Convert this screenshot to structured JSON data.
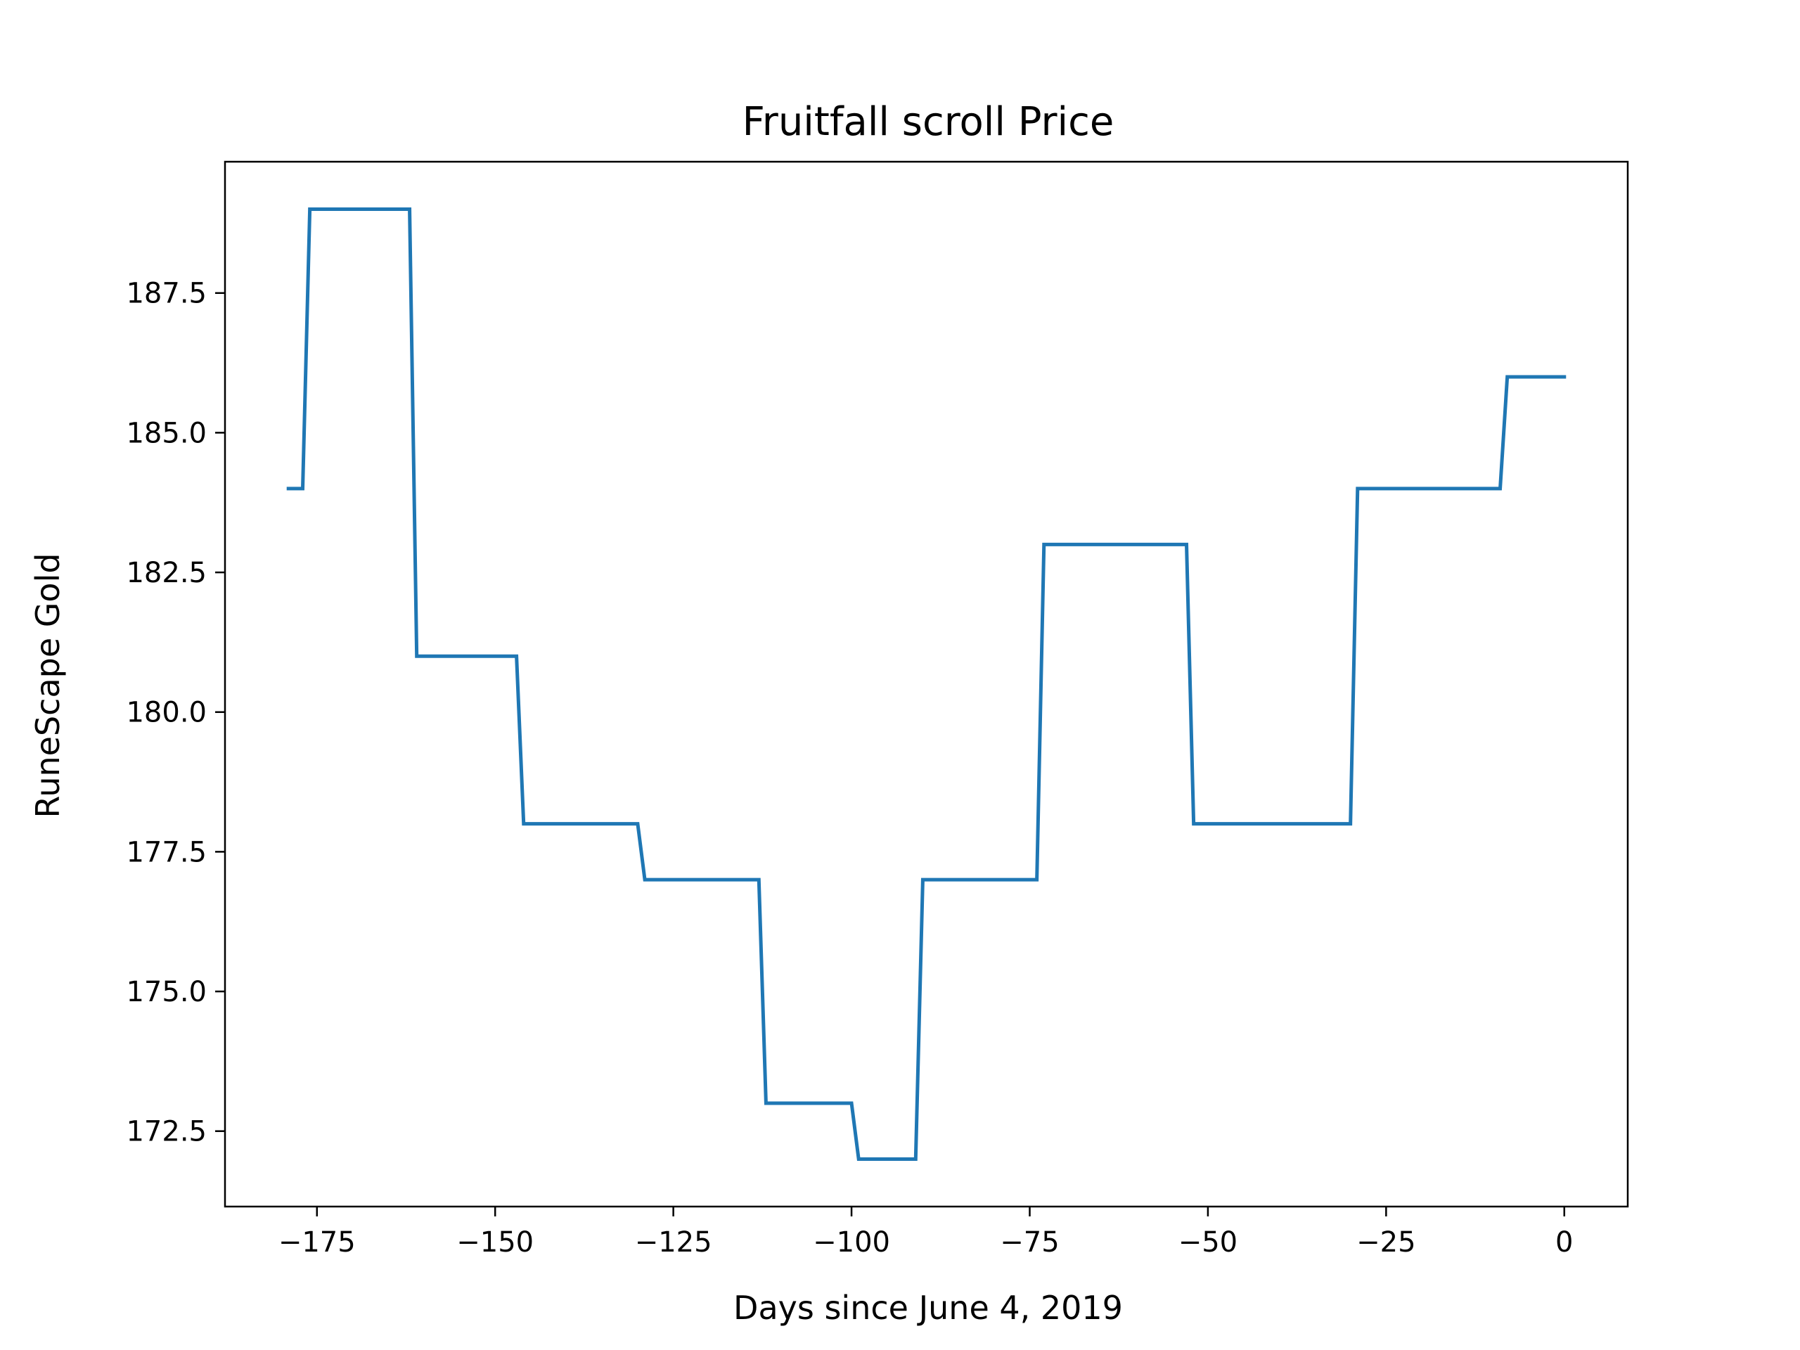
{
  "chart_data": {
    "type": "line",
    "title": "Fruitfall scroll Price",
    "xlabel": "Days since June 4, 2019",
    "ylabel": "RuneScape Gold",
    "xlim": [
      -187.9,
      8.9
    ],
    "ylim": [
      171.15,
      189.85
    ],
    "x_ticks": [
      -175,
      -150,
      -125,
      -100,
      -75,
      -50,
      -25,
      0
    ],
    "x_tick_labels": [
      "−175",
      "−150",
      "−125",
      "−100",
      "−75",
      "−50",
      "−25",
      "0"
    ],
    "y_ticks": [
      172.5,
      175.0,
      177.5,
      180.0,
      182.5,
      185.0,
      187.5
    ],
    "y_tick_labels": [
      "172.5",
      "175.0",
      "177.5",
      "180.0",
      "182.5",
      "185.0",
      "187.5"
    ],
    "grid": false,
    "series": [
      {
        "color": "#1f77b4",
        "x": [
          -179,
          -178,
          -177,
          -176,
          -163,
          -162,
          -161,
          -147,
          -146,
          -130,
          -129,
          -113,
          -112,
          -100,
          -99,
          -91,
          -90,
          -74,
          -73,
          -53,
          -52,
          -30,
          -29,
          -9,
          -8,
          0
        ],
        "y": [
          184,
          184,
          184,
          189,
          189,
          189,
          181,
          181,
          178,
          178,
          177,
          177,
          173,
          173,
          172,
          172,
          177,
          177,
          183,
          183,
          178,
          178,
          184,
          184,
          186,
          186
        ]
      }
    ]
  }
}
